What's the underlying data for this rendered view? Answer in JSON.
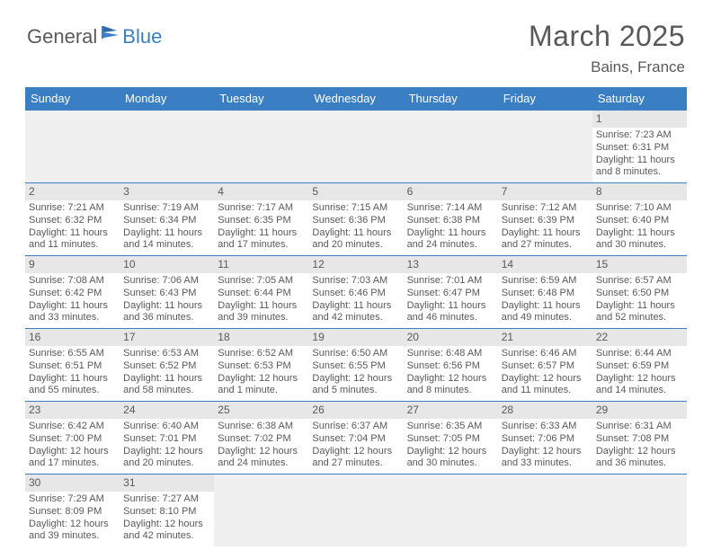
{
  "logo": {
    "textA": "General",
    "textB": "Blue"
  },
  "title": "March 2025",
  "location": "Bains, France",
  "colors": {
    "accent": "#3a7fc4",
    "text": "#595959",
    "daynum_bg": "#e7e7e7",
    "blank_bg": "#f0f0f0",
    "bg": "#ffffff"
  },
  "day_names": [
    "Sunday",
    "Monday",
    "Tuesday",
    "Wednesday",
    "Thursday",
    "Friday",
    "Saturday"
  ],
  "weeks": [
    [
      null,
      null,
      null,
      null,
      null,
      null,
      {
        "n": "1",
        "sr": "Sunrise: 7:23 AM",
        "ss": "Sunset: 6:31 PM",
        "dl": "Daylight: 11 hours and 8 minutes."
      }
    ],
    [
      {
        "n": "2",
        "sr": "Sunrise: 7:21 AM",
        "ss": "Sunset: 6:32 PM",
        "dl": "Daylight: 11 hours and 11 minutes."
      },
      {
        "n": "3",
        "sr": "Sunrise: 7:19 AM",
        "ss": "Sunset: 6:34 PM",
        "dl": "Daylight: 11 hours and 14 minutes."
      },
      {
        "n": "4",
        "sr": "Sunrise: 7:17 AM",
        "ss": "Sunset: 6:35 PM",
        "dl": "Daylight: 11 hours and 17 minutes."
      },
      {
        "n": "5",
        "sr": "Sunrise: 7:15 AM",
        "ss": "Sunset: 6:36 PM",
        "dl": "Daylight: 11 hours and 20 minutes."
      },
      {
        "n": "6",
        "sr": "Sunrise: 7:14 AM",
        "ss": "Sunset: 6:38 PM",
        "dl": "Daylight: 11 hours and 24 minutes."
      },
      {
        "n": "7",
        "sr": "Sunrise: 7:12 AM",
        "ss": "Sunset: 6:39 PM",
        "dl": "Daylight: 11 hours and 27 minutes."
      },
      {
        "n": "8",
        "sr": "Sunrise: 7:10 AM",
        "ss": "Sunset: 6:40 PM",
        "dl": "Daylight: 11 hours and 30 minutes."
      }
    ],
    [
      {
        "n": "9",
        "sr": "Sunrise: 7:08 AM",
        "ss": "Sunset: 6:42 PM",
        "dl": "Daylight: 11 hours and 33 minutes."
      },
      {
        "n": "10",
        "sr": "Sunrise: 7:06 AM",
        "ss": "Sunset: 6:43 PM",
        "dl": "Daylight: 11 hours and 36 minutes."
      },
      {
        "n": "11",
        "sr": "Sunrise: 7:05 AM",
        "ss": "Sunset: 6:44 PM",
        "dl": "Daylight: 11 hours and 39 minutes."
      },
      {
        "n": "12",
        "sr": "Sunrise: 7:03 AM",
        "ss": "Sunset: 6:46 PM",
        "dl": "Daylight: 11 hours and 42 minutes."
      },
      {
        "n": "13",
        "sr": "Sunrise: 7:01 AM",
        "ss": "Sunset: 6:47 PM",
        "dl": "Daylight: 11 hours and 46 minutes."
      },
      {
        "n": "14",
        "sr": "Sunrise: 6:59 AM",
        "ss": "Sunset: 6:48 PM",
        "dl": "Daylight: 11 hours and 49 minutes."
      },
      {
        "n": "15",
        "sr": "Sunrise: 6:57 AM",
        "ss": "Sunset: 6:50 PM",
        "dl": "Daylight: 11 hours and 52 minutes."
      }
    ],
    [
      {
        "n": "16",
        "sr": "Sunrise: 6:55 AM",
        "ss": "Sunset: 6:51 PM",
        "dl": "Daylight: 11 hours and 55 minutes."
      },
      {
        "n": "17",
        "sr": "Sunrise: 6:53 AM",
        "ss": "Sunset: 6:52 PM",
        "dl": "Daylight: 11 hours and 58 minutes."
      },
      {
        "n": "18",
        "sr": "Sunrise: 6:52 AM",
        "ss": "Sunset: 6:53 PM",
        "dl": "Daylight: 12 hours and 1 minute."
      },
      {
        "n": "19",
        "sr": "Sunrise: 6:50 AM",
        "ss": "Sunset: 6:55 PM",
        "dl": "Daylight: 12 hours and 5 minutes."
      },
      {
        "n": "20",
        "sr": "Sunrise: 6:48 AM",
        "ss": "Sunset: 6:56 PM",
        "dl": "Daylight: 12 hours and 8 minutes."
      },
      {
        "n": "21",
        "sr": "Sunrise: 6:46 AM",
        "ss": "Sunset: 6:57 PM",
        "dl": "Daylight: 12 hours and 11 minutes."
      },
      {
        "n": "22",
        "sr": "Sunrise: 6:44 AM",
        "ss": "Sunset: 6:59 PM",
        "dl": "Daylight: 12 hours and 14 minutes."
      }
    ],
    [
      {
        "n": "23",
        "sr": "Sunrise: 6:42 AM",
        "ss": "Sunset: 7:00 PM",
        "dl": "Daylight: 12 hours and 17 minutes."
      },
      {
        "n": "24",
        "sr": "Sunrise: 6:40 AM",
        "ss": "Sunset: 7:01 PM",
        "dl": "Daylight: 12 hours and 20 minutes."
      },
      {
        "n": "25",
        "sr": "Sunrise: 6:38 AM",
        "ss": "Sunset: 7:02 PM",
        "dl": "Daylight: 12 hours and 24 minutes."
      },
      {
        "n": "26",
        "sr": "Sunrise: 6:37 AM",
        "ss": "Sunset: 7:04 PM",
        "dl": "Daylight: 12 hours and 27 minutes."
      },
      {
        "n": "27",
        "sr": "Sunrise: 6:35 AM",
        "ss": "Sunset: 7:05 PM",
        "dl": "Daylight: 12 hours and 30 minutes."
      },
      {
        "n": "28",
        "sr": "Sunrise: 6:33 AM",
        "ss": "Sunset: 7:06 PM",
        "dl": "Daylight: 12 hours and 33 minutes."
      },
      {
        "n": "29",
        "sr": "Sunrise: 6:31 AM",
        "ss": "Sunset: 7:08 PM",
        "dl": "Daylight: 12 hours and 36 minutes."
      }
    ],
    [
      {
        "n": "30",
        "sr": "Sunrise: 7:29 AM",
        "ss": "Sunset: 8:09 PM",
        "dl": "Daylight: 12 hours and 39 minutes."
      },
      {
        "n": "31",
        "sr": "Sunrise: 7:27 AM",
        "ss": "Sunset: 8:10 PM",
        "dl": "Daylight: 12 hours and 42 minutes."
      },
      null,
      null,
      null,
      null,
      null
    ]
  ]
}
